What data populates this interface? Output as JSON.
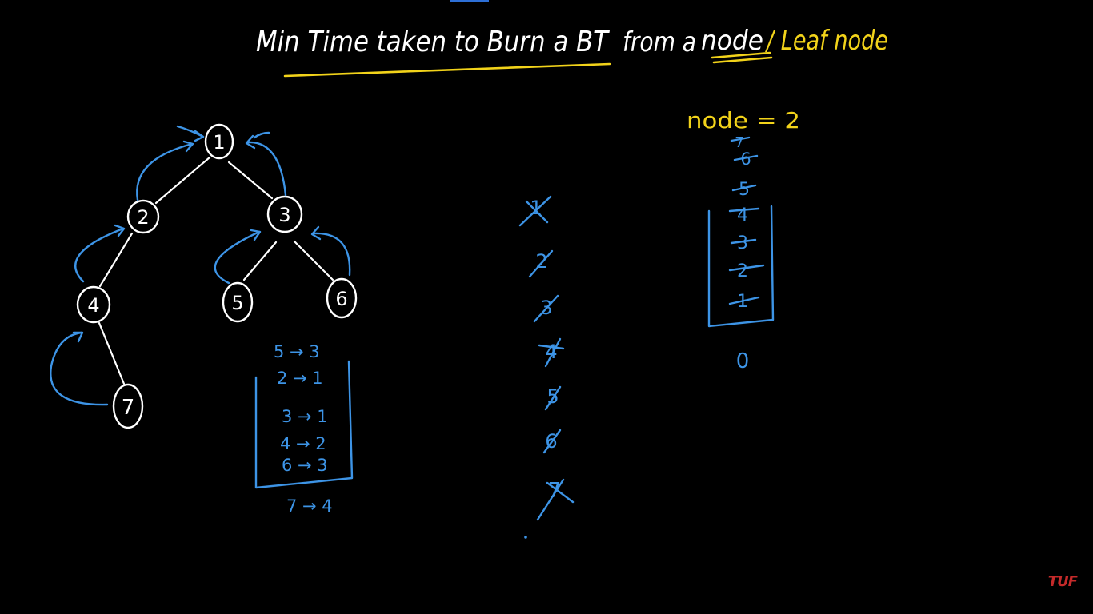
{
  "title": {
    "part1": "Min Time taken to Burn a BT",
    "part2": "from a",
    "part3": "node",
    "part4": "/ Leaf node"
  },
  "tree": {
    "nodes": [
      {
        "id": "1",
        "label": "1"
      },
      {
        "id": "2",
        "label": "2"
      },
      {
        "id": "3",
        "label": "3"
      },
      {
        "id": "4",
        "label": "4"
      },
      {
        "id": "5",
        "label": "5"
      },
      {
        "id": "6",
        "label": "6"
      },
      {
        "id": "7",
        "label": "7"
      }
    ],
    "edges": [
      [
        "1",
        "2"
      ],
      [
        "1",
        "3"
      ],
      [
        "2",
        "4"
      ],
      [
        "3",
        "5"
      ],
      [
        "3",
        "6"
      ],
      [
        "4",
        "7"
      ]
    ]
  },
  "parent_map": {
    "above_box": "5 → 3",
    "entries": [
      "2 → 1",
      "3 → 1",
      "4 → 2",
      "6 → 3"
    ],
    "below_box": "7 → 4"
  },
  "crossed_column": [
    "1",
    "2",
    "3",
    "4",
    "5",
    "6",
    "7"
  ],
  "time_stack": {
    "heading": "node = 2",
    "items": [
      "7",
      "6",
      "5",
      "4",
      "3",
      "2",
      "1"
    ],
    "bottom": "0"
  },
  "logo": "TUF",
  "colors": {
    "background": "#000000",
    "chalk_white": "#ffffff",
    "blue": "#3d94e6",
    "yellow": "#f2d31a",
    "logo_red": "#c42a2a"
  }
}
